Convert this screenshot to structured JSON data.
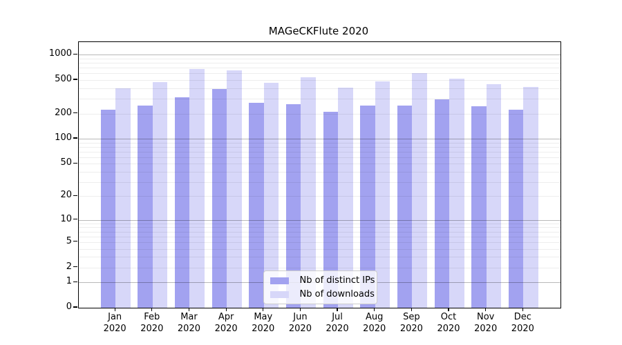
{
  "title": "MAGeCKFlute 2020",
  "chart_data": {
    "type": "bar",
    "title": "MAGeCKFlute 2020",
    "yscale": "log1p",
    "ylim": [
      0,
      1413
    ],
    "grid": true,
    "categories": [
      "Jan",
      "Feb",
      "Mar",
      "Apr",
      "May",
      "Jun",
      "Jul",
      "Aug",
      "Sep",
      "Oct",
      "Nov",
      "Dec"
    ],
    "xtick_year_line": "2020",
    "yticks": [
      1000,
      500,
      200,
      100,
      50,
      20,
      10,
      5,
      2,
      1,
      0
    ],
    "series": [
      {
        "name": "Nb of distinct IPs",
        "color": "#a2a2f0",
        "values": [
          224,
          250,
          310,
          395,
          270,
          260,
          208,
          247,
          248,
          296,
          244,
          222
        ]
      },
      {
        "name": "Nb of downloads",
        "color": "#d7d7f9",
        "values": [
          400,
          470,
          680,
          650,
          462,
          535,
          410,
          480,
          600,
          520,
          450,
          415
        ]
      }
    ],
    "legend": {
      "position": "lower center",
      "labels": [
        "Nb of distinct IPs",
        "Nb of downloads"
      ]
    }
  },
  "colors": {
    "bar_ips": "#a2a2f0",
    "bar_downloads": "#d7d7f9",
    "grid_major": "#b8b8b8",
    "grid_minor": "#ededed",
    "axis": "#000000",
    "background": "#ffffff"
  }
}
